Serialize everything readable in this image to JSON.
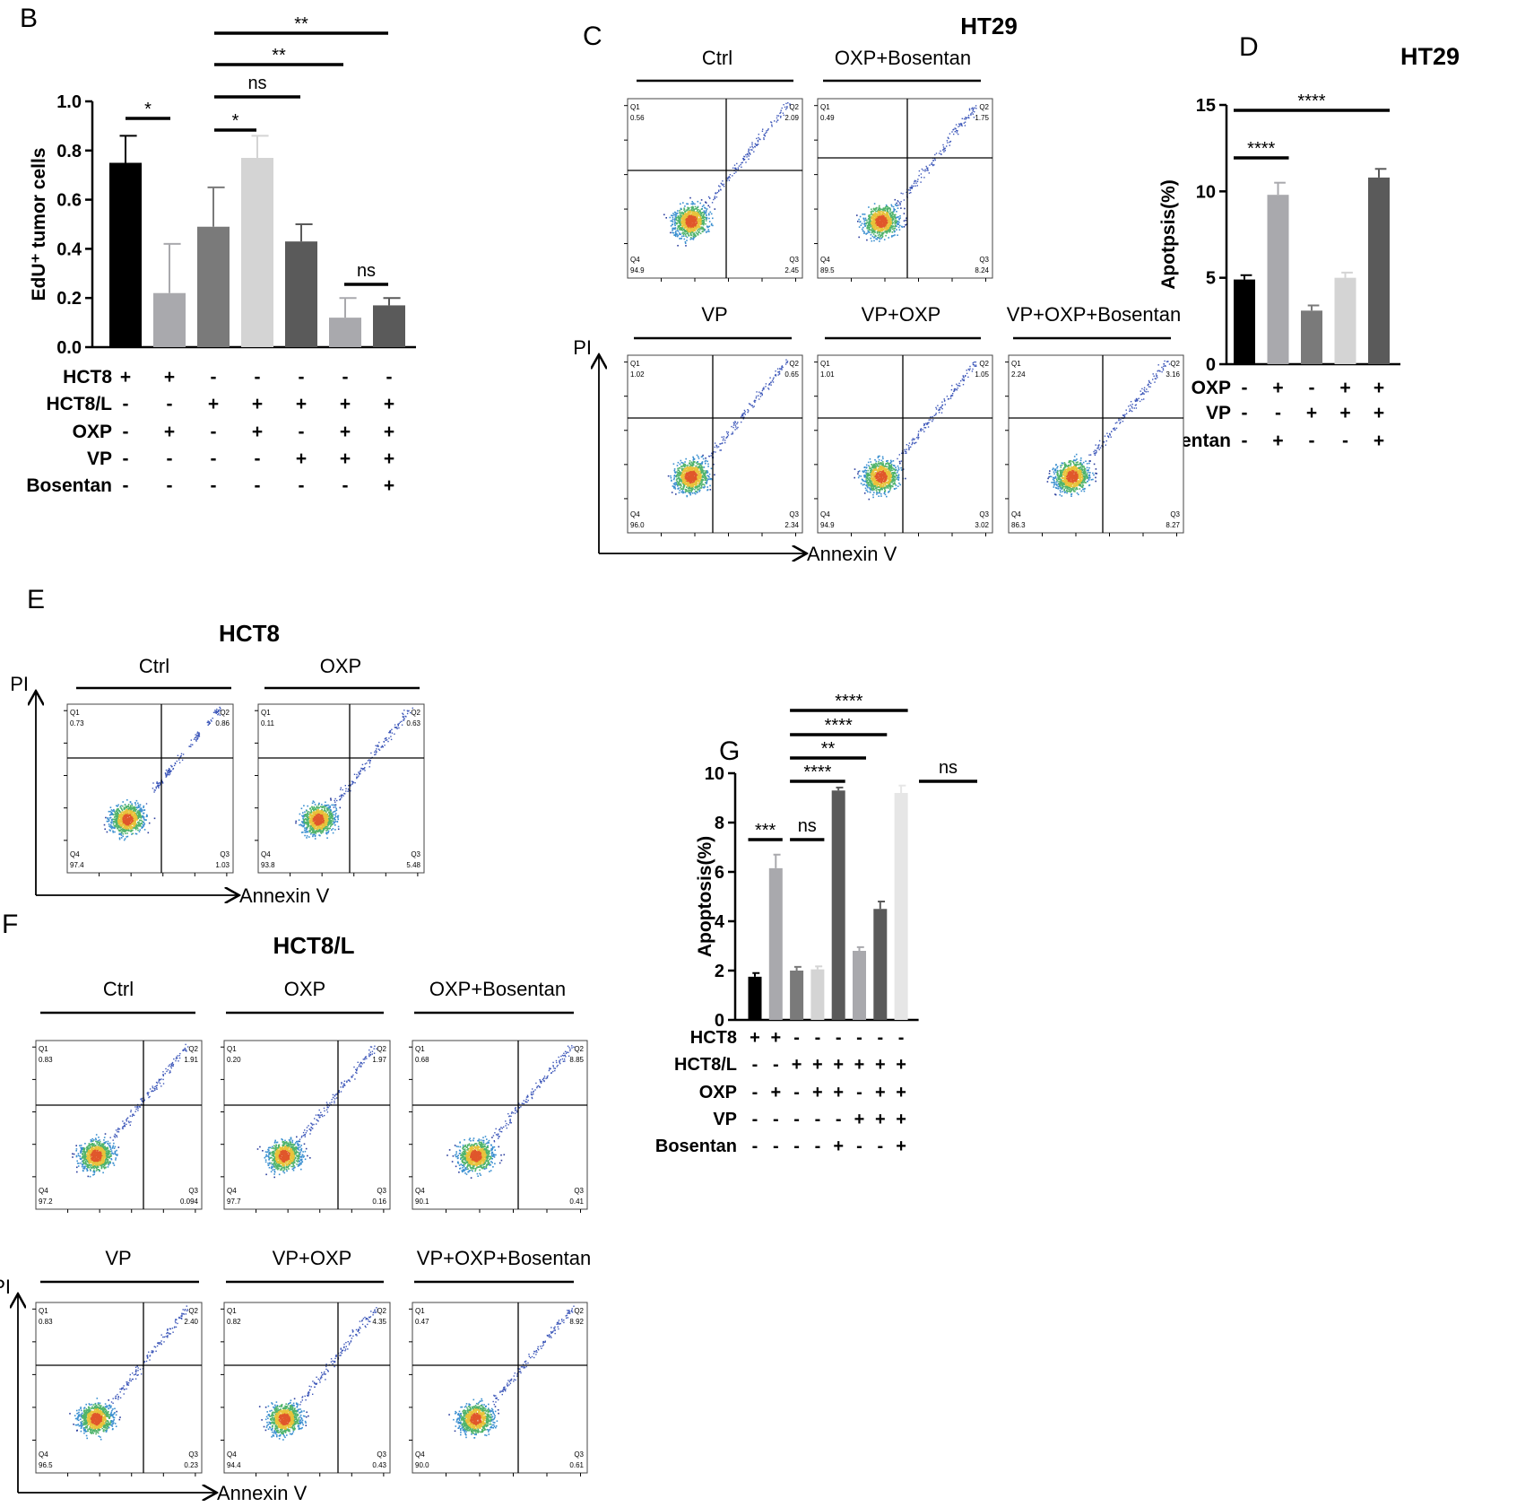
{
  "panel_letters": {
    "B": "B",
    "C": "C",
    "D": "D",
    "E": "E",
    "F": "F",
    "G": "G"
  },
  "titles": {
    "C": "HT29",
    "D": "HT29",
    "E": "HCT8",
    "F": "HCT8/L"
  },
  "flow_axes": {
    "x": "Annexin V",
    "y": "PI"
  },
  "colors": {
    "black": "#000000",
    "dark": "#4a4a4a",
    "mid": "#7a7a7a",
    "light": "#a9a9ad",
    "pale": "#d4d4d4",
    "dot_blue": "#2c3f9e"
  },
  "chart_data": [
    {
      "panel": "B",
      "type": "bar",
      "ylabel": "EdU⁺ tumor cells",
      "ylim": [
        0,
        1.0
      ],
      "yticks": [
        "0.0",
        "0.2",
        "0.4",
        "0.6",
        "0.8",
        "1.0"
      ],
      "values": [
        0.75,
        0.22,
        0.49,
        0.77,
        0.43,
        0.12,
        0.17
      ],
      "errors": [
        0.11,
        0.2,
        0.16,
        0.09,
        0.07,
        0.08,
        0.03
      ],
      "bar_colors": [
        "#000000",
        "#a9a9ad",
        "#7a7a7a",
        "#d4d4d4",
        "#5a5a5a",
        "#a9a9ad",
        "#5a5a5a"
      ],
      "conditions": [
        {
          "label": "HCT8",
          "signs": [
            "+",
            "+",
            "-",
            "-",
            "-",
            "-",
            "-"
          ]
        },
        {
          "label": "HCT8/L",
          "signs": [
            "-",
            "-",
            "+",
            "+",
            "+",
            "+",
            "+"
          ]
        },
        {
          "label": "OXP",
          "signs": [
            "-",
            "+",
            "-",
            "+",
            "-",
            "+",
            "+"
          ]
        },
        {
          "label": "VP",
          "signs": [
            "-",
            "-",
            "-",
            "-",
            "+",
            "+",
            "+"
          ]
        },
        {
          "label": "Bosentan",
          "signs": [
            "-",
            "-",
            "-",
            "-",
            "-",
            "-",
            "+"
          ]
        }
      ],
      "significance": [
        {
          "from": 0,
          "to": 1,
          "label": "*"
        },
        {
          "from": 2,
          "to": 3,
          "label": "*"
        },
        {
          "from": 2,
          "to": 4,
          "label": "ns"
        },
        {
          "from": 2,
          "to": 5,
          "label": "**"
        },
        {
          "from": 2,
          "to": 6,
          "label": "**"
        },
        {
          "from": 5,
          "to": 6,
          "label": "ns"
        }
      ]
    },
    {
      "panel": "D",
      "type": "bar",
      "title": "HT29",
      "ylabel": "Apotpsis(%)",
      "ylim": [
        0,
        15
      ],
      "yticks": [
        "0",
        "5",
        "10",
        "15"
      ],
      "values": [
        4.9,
        9.8,
        3.1,
        5.0,
        10.8
      ],
      "errors": [
        0.25,
        0.7,
        0.3,
        0.3,
        0.5
      ],
      "bar_colors": [
        "#000000",
        "#a9a9ad",
        "#7a7a7a",
        "#d4d4d4",
        "#5a5a5a"
      ],
      "conditions": [
        {
          "label": "OXP",
          "signs": [
            "-",
            "+",
            "-",
            "+",
            "+"
          ]
        },
        {
          "label": "VP",
          "signs": [
            "-",
            "-",
            "+",
            "+",
            "+"
          ]
        },
        {
          "label": "Bosentan",
          "signs": [
            "-",
            "+",
            "-",
            "-",
            "+"
          ]
        }
      ],
      "significance": [
        {
          "from": 0,
          "to": 1,
          "label": "****"
        },
        {
          "from": 0,
          "to": 4,
          "label": "****"
        }
      ]
    },
    {
      "panel": "G",
      "type": "bar",
      "ylabel": "Apoptosis(%)",
      "ylim": [
        0,
        10
      ],
      "yticks": [
        "0",
        "2",
        "4",
        "6",
        "8",
        "10"
      ],
      "values": [
        1.75,
        6.15,
        2.0,
        2.05,
        9.3,
        2.8,
        4.5,
        9.2
      ],
      "errors": [
        0.15,
        0.55,
        0.15,
        0.12,
        0.12,
        0.15,
        0.3,
        0.3
      ],
      "bar_colors": [
        "#000000",
        "#a9a9ad",
        "#7a7a7a",
        "#d4d4d4",
        "#5a5a5a",
        "#a9a9ad",
        "#5a5a5a",
        "#e6e6e6"
      ],
      "conditions": [
        {
          "label": "HCT8",
          "signs": [
            "+",
            "+",
            "-",
            "-",
            "-",
            "-",
            "-",
            "-"
          ]
        },
        {
          "label": "HCT8/L",
          "signs": [
            "-",
            "-",
            "+",
            "+",
            "+",
            "+",
            "+",
            "+"
          ]
        },
        {
          "label": "OXP",
          "signs": [
            "-",
            "+",
            "-",
            "+",
            "+",
            "-",
            "+",
            "+"
          ]
        },
        {
          "label": "VP",
          "signs": [
            "-",
            "-",
            "-",
            "-",
            "-",
            "+",
            "+",
            "+"
          ]
        },
        {
          "label": "Bosentan",
          "signs": [
            "-",
            "-",
            "-",
            "-",
            "+",
            "-",
            "-",
            "+"
          ]
        }
      ],
      "significance": [
        {
          "from": 0,
          "to": 1,
          "label": "***"
        },
        {
          "from": 2,
          "to": 3,
          "label": "ns"
        },
        {
          "from": 2,
          "to": 4,
          "label": "****"
        },
        {
          "from": 4,
          "to": 7,
          "label": "ns"
        },
        {
          "from": 2,
          "to": 5,
          "label": "**"
        },
        {
          "from": 2,
          "to": 6,
          "label": "****"
        },
        {
          "from": 2,
          "to": 7,
          "label": "****"
        }
      ]
    }
  ],
  "flow_panels": {
    "C": [
      {
        "label": "Ctrl",
        "q1": "0.56",
        "q2": "2.09",
        "q3": "2.45",
        "q4": "94.9"
      },
      {
        "label": "OXP+Bosentan",
        "q1": "0.49",
        "q2": "1.75",
        "q3": "8.24",
        "q4": "89.5"
      },
      {
        "label": "VP",
        "q1": "1.02",
        "q2": "0.65",
        "q3": "2.34",
        "q4": "96.0"
      },
      {
        "label": "VP+OXP",
        "q1": "1.01",
        "q2": "1.05",
        "q3": "3.02",
        "q4": "94.9"
      },
      {
        "label": "VP+OXP+Bosentan",
        "q1": "2.24",
        "q2": "3.16",
        "q3": "8.27",
        "q4": "86.3"
      }
    ],
    "E": [
      {
        "label": "Ctrl",
        "q1": "0.73",
        "q2": "0.86",
        "q3": "1.03",
        "q4": "97.4"
      },
      {
        "label": "OXP",
        "q1": "0.11",
        "q2": "0.63",
        "q3": "5.48",
        "q4": "93.8"
      }
    ],
    "F": [
      {
        "label": "Ctrl",
        "q1": "0.83",
        "q2": "1.91",
        "q3": "0.094",
        "q4": "97.2"
      },
      {
        "label": "OXP",
        "q1": "0.20",
        "q2": "1.97",
        "q3": "0.16",
        "q4": "97.7"
      },
      {
        "label": "OXP+Bosentan",
        "q1": "0.68",
        "q2": "8.85",
        "q3": "0.41",
        "q4": "90.1"
      },
      {
        "label": "VP",
        "q1": "0.83",
        "q2": "2.40",
        "q3": "0.23",
        "q4": "96.5"
      },
      {
        "label": "VP+OXP",
        "q1": "0.82",
        "q2": "4.35",
        "q3": "0.43",
        "q4": "94.4"
      },
      {
        "label": "VP+OXP+Bosentan",
        "q1": "0.47",
        "q2": "8.92",
        "q3": "0.61",
        "q4": "90.0"
      }
    ]
  }
}
